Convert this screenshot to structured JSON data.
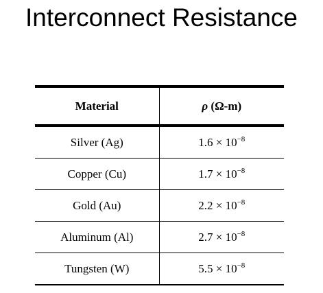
{
  "title": "Interconnect Resistance",
  "table": {
    "headers": {
      "material": "Material",
      "rho_symbol": "ρ",
      "rho_unit": " (Ω-m)"
    },
    "rows": [
      {
        "material": "Silver (Ag)",
        "mantissa": "1.6",
        "times": " × 10",
        "exponent": "−8"
      },
      {
        "material": "Copper (Cu)",
        "mantissa": "1.7",
        "times": " × 10",
        "exponent": "−8"
      },
      {
        "material": "Gold (Au)",
        "mantissa": "2.2",
        "times": " × 10",
        "exponent": "−8"
      },
      {
        "material": "Aluminum  (Al)",
        "mantissa": "2.7",
        "times": " × 10",
        "exponent": "−8"
      },
      {
        "material": "Tungsten  (W)",
        "mantissa": "5.5",
        "times": " × 10",
        "exponent": "−8"
      }
    ]
  }
}
